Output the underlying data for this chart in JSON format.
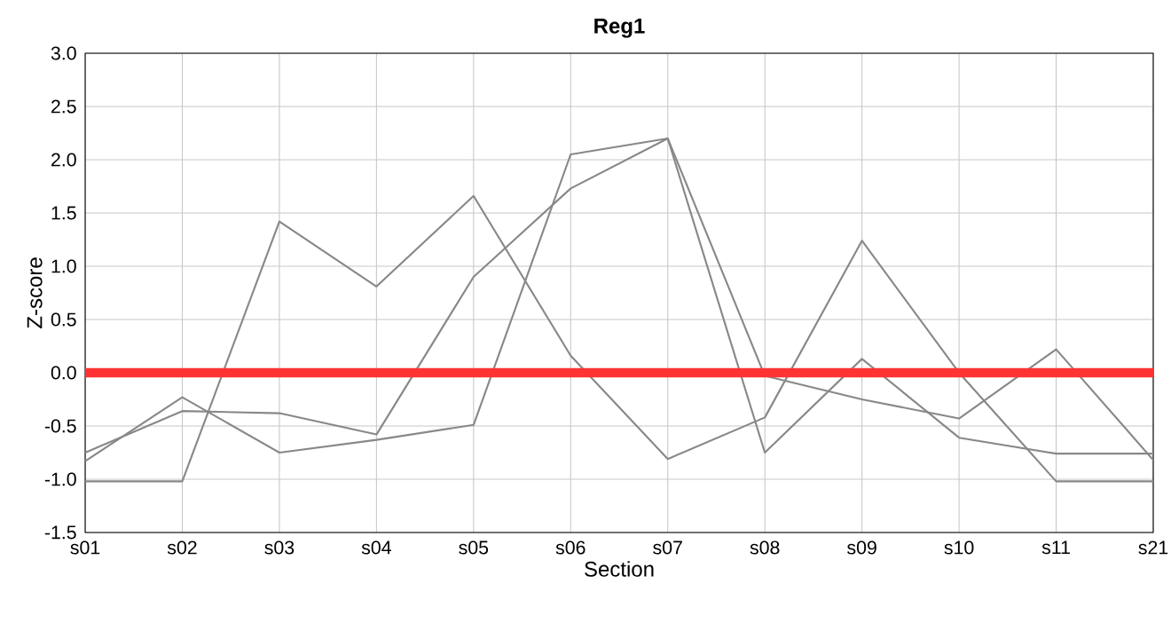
{
  "chart_data": {
    "type": "line",
    "title": "Reg1",
    "xlabel": "Section",
    "ylabel": "Z-score",
    "categories": [
      "s01",
      "s02",
      "s03",
      "s04",
      "s05",
      "s06",
      "s07",
      "s08",
      "s09",
      "s10",
      "s11",
      "s21"
    ],
    "series": [
      {
        "color": "#888888",
        "values": [
          -1.02,
          -1.02,
          1.42,
          0.81,
          1.66,
          0.16,
          -0.81,
          -0.42,
          1.24,
          0.0,
          -1.02,
          -1.02
        ]
      },
      {
        "color": "#888888",
        "values": [
          -0.83,
          -0.23,
          -0.75,
          -0.63,
          -0.49,
          2.05,
          2.2,
          -0.75,
          0.13,
          -0.61,
          -0.76,
          -0.76
        ]
      },
      {
        "color": "#888888",
        "values": [
          -0.75,
          -0.36,
          -0.38,
          -0.58,
          0.9,
          1.73,
          2.2,
          -0.03,
          -0.25,
          -0.43,
          0.22,
          -0.82
        ]
      }
    ],
    "ylim": [
      -1.5,
      3.0
    ],
    "yticks": [
      {
        "value": -1.5,
        "label": "-1.5"
      },
      {
        "value": -1.0,
        "label": "-1.0"
      },
      {
        "value": -0.5,
        "label": "-0.5"
      },
      {
        "value": 0.0,
        "label": "0.0"
      },
      {
        "value": 0.5,
        "label": "0.5"
      },
      {
        "value": 1.0,
        "label": "1.0"
      },
      {
        "value": 1.5,
        "label": "1.5"
      },
      {
        "value": 2.0,
        "label": "2.0"
      },
      {
        "value": 2.5,
        "label": "2.5"
      },
      {
        "value": 3.0,
        "label": "3.0"
      }
    ],
    "ref_lines": [
      {
        "axis": "y",
        "value": 0,
        "color": "#ff3333"
      }
    ],
    "grid": true,
    "marker": "none",
    "line_style": "solid",
    "legend": false
  }
}
